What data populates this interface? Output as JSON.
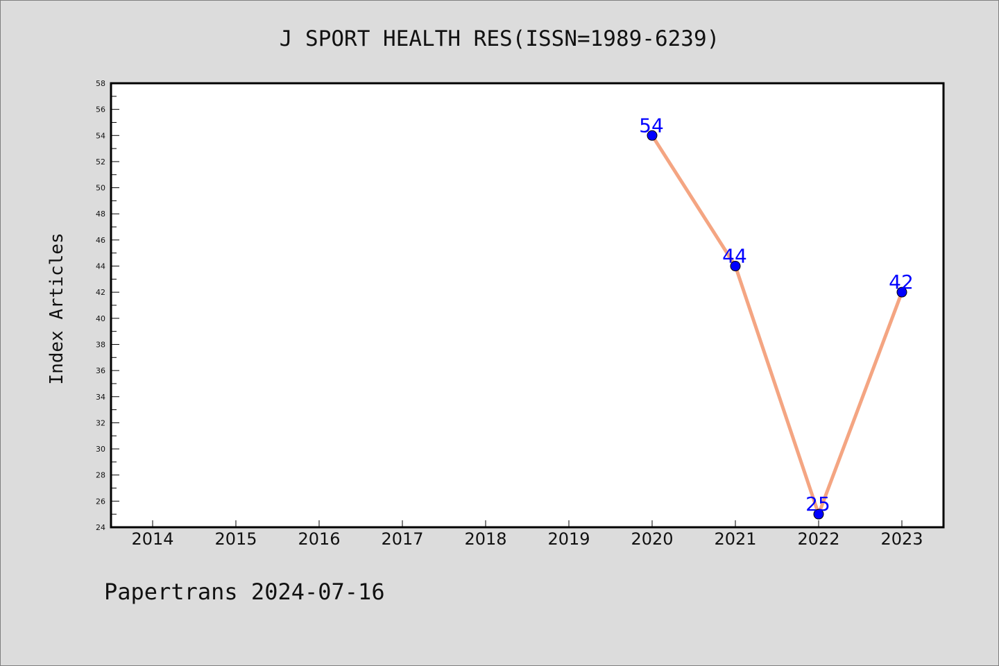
{
  "chart_data": {
    "type": "line",
    "title": "J SPORT HEALTH RES(ISSN=1989-6239)",
    "xlabel": "",
    "ylabel": "Index Articles",
    "categories": [
      "2014",
      "2015",
      "2016",
      "2017",
      "2018",
      "2019",
      "2020",
      "2021",
      "2022",
      "2023"
    ],
    "series": [
      {
        "x": [
          "2020",
          "2021",
          "2022",
          "2023"
        ],
        "values": [
          54,
          44,
          25,
          42
        ]
      }
    ],
    "ylim": [
      24,
      58
    ],
    "yticks": [
      24,
      26,
      28,
      30,
      32,
      34,
      36,
      38,
      40,
      42,
      44,
      46,
      48,
      50,
      52,
      54,
      56,
      58
    ],
    "grid": false,
    "legend": "none",
    "colors": {
      "line": "#f4a582",
      "marker": "#0000ff",
      "label": "#0000ff",
      "page_background": "#dcdcdc",
      "plot_background": "#ffffff"
    }
  },
  "footer": {
    "text": "Papertrans 2024-07-16"
  }
}
